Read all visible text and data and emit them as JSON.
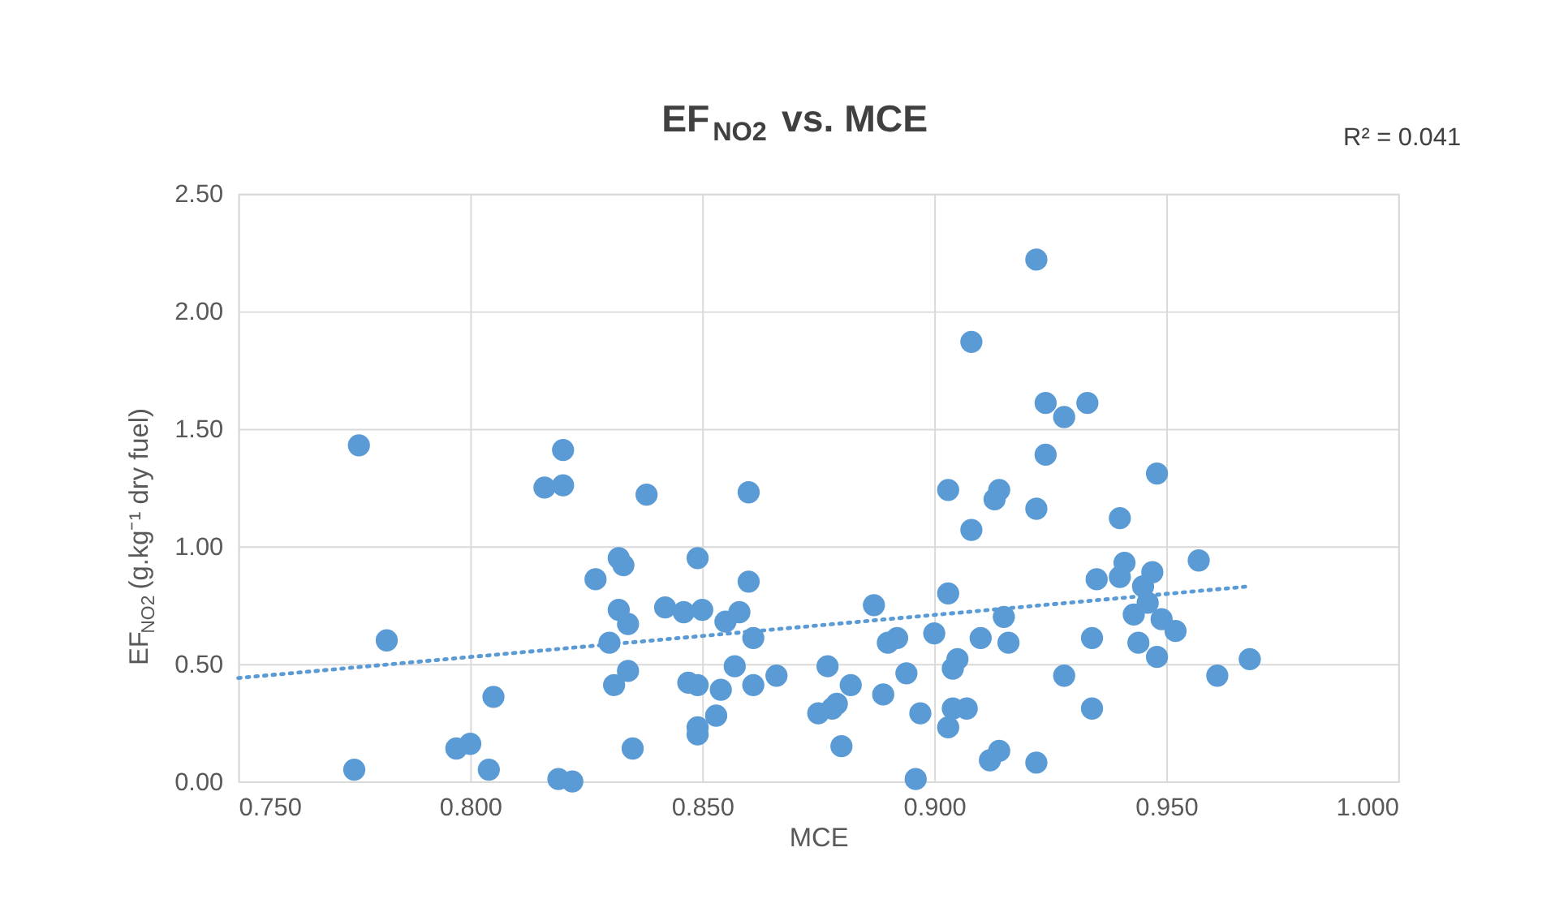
{
  "chart_data": {
    "type": "scatter",
    "title": "EF$_{NO2}$ vs. MCE",
    "xlabel": "MCE",
    "ylabel": "EF$_{NO2}$ (g.kg⁻¹ dry fuel)",
    "annotations": [
      "R² = 0.041"
    ],
    "series": [
      {
        "color": "#5b9bd5",
        "marker": "circle",
        "x": [
          0.776,
          0.782,
          0.775,
          0.797,
          0.8,
          0.805,
          0.804,
          0.816,
          0.82,
          0.82,
          0.819,
          0.822,
          0.838,
          0.86,
          0.832,
          0.833,
          0.849,
          0.827,
          0.86,
          0.832,
          0.834,
          0.842,
          0.846,
          0.85,
          0.855,
          0.858,
          0.861,
          0.83,
          0.834,
          0.831,
          0.847,
          0.849,
          0.854,
          0.857,
          0.861,
          0.866,
          0.853,
          0.849,
          0.849,
          0.835,
          0.877,
          0.875,
          0.878,
          0.879,
          0.882,
          0.88,
          0.887,
          0.889,
          0.89,
          0.892,
          0.894,
          0.896,
          0.897,
          0.9,
          0.903,
          0.903,
          0.904,
          0.905,
          0.903,
          0.904,
          0.907,
          0.908,
          0.908,
          0.91,
          0.912,
          0.914,
          0.913,
          0.914,
          0.915,
          0.916,
          0.922,
          0.922,
          0.922,
          0.924,
          0.924,
          0.928,
          0.928,
          0.933,
          0.934,
          0.934,
          0.935,
          0.94,
          0.94,
          0.941,
          0.943,
          0.944,
          0.945,
          0.946,
          0.947,
          0.948,
          0.948,
          0.949,
          0.952,
          0.957,
          0.961,
          0.968
        ],
        "values": [
          1.43,
          0.6,
          0.05,
          0.14,
          0.16,
          0.36,
          0.05,
          1.25,
          1.41,
          1.26,
          0.01,
          0.0,
          1.22,
          1.23,
          0.95,
          0.92,
          0.95,
          0.86,
          0.85,
          0.73,
          0.67,
          0.74,
          0.72,
          0.73,
          0.68,
          0.72,
          0.61,
          0.59,
          0.47,
          0.41,
          0.42,
          0.41,
          0.39,
          0.49,
          0.41,
          0.45,
          0.28,
          0.23,
          0.2,
          0.14,
          0.49,
          0.29,
          0.31,
          0.33,
          0.41,
          0.15,
          0.75,
          0.37,
          0.59,
          0.61,
          0.46,
          0.01,
          0.29,
          0.63,
          0.8,
          1.24,
          0.48,
          0.52,
          0.23,
          0.31,
          0.31,
          1.87,
          1.07,
          0.61,
          0.09,
          0.13,
          1.2,
          1.24,
          0.7,
          0.59,
          1.16,
          2.22,
          0.08,
          1.39,
          1.61,
          1.55,
          0.45,
          1.61,
          0.61,
          0.31,
          0.86,
          0.87,
          1.12,
          0.93,
          0.71,
          0.59,
          0.83,
          0.76,
          0.89,
          1.31,
          0.53,
          0.69,
          0.64,
          0.94,
          0.45,
          0.52
        ]
      },
      {
        "type": "line",
        "color": "#5b9bd5",
        "line_style": "dotted",
        "marker": "none",
        "x": [
          0.75,
          0.968
        ],
        "values": [
          0.44,
          0.83
        ]
      }
    ],
    "xlim": [
      0.75,
      1.0
    ],
    "ylim": [
      0,
      2.5
    ],
    "xticks": [
      {
        "value": 0.75,
        "label": "0.750"
      },
      {
        "value": 0.8,
        "label": "0.800"
      },
      {
        "value": 0.85,
        "label": "0.850"
      },
      {
        "value": 0.9,
        "label": "0.900"
      },
      {
        "value": 0.95,
        "label": "0.950"
      },
      {
        "value": 1.0,
        "label": "1.000"
      }
    ],
    "yticks": [
      {
        "value": 0,
        "label": "0.00"
      },
      {
        "value": 0.5,
        "label": "0.50"
      },
      {
        "value": 1.0,
        "label": "1.00"
      },
      {
        "value": 1.5,
        "label": "1.50"
      },
      {
        "value": 2.0,
        "label": "2.00"
      },
      {
        "value": 2.5,
        "label": "2.50"
      }
    ],
    "grid": true
  }
}
